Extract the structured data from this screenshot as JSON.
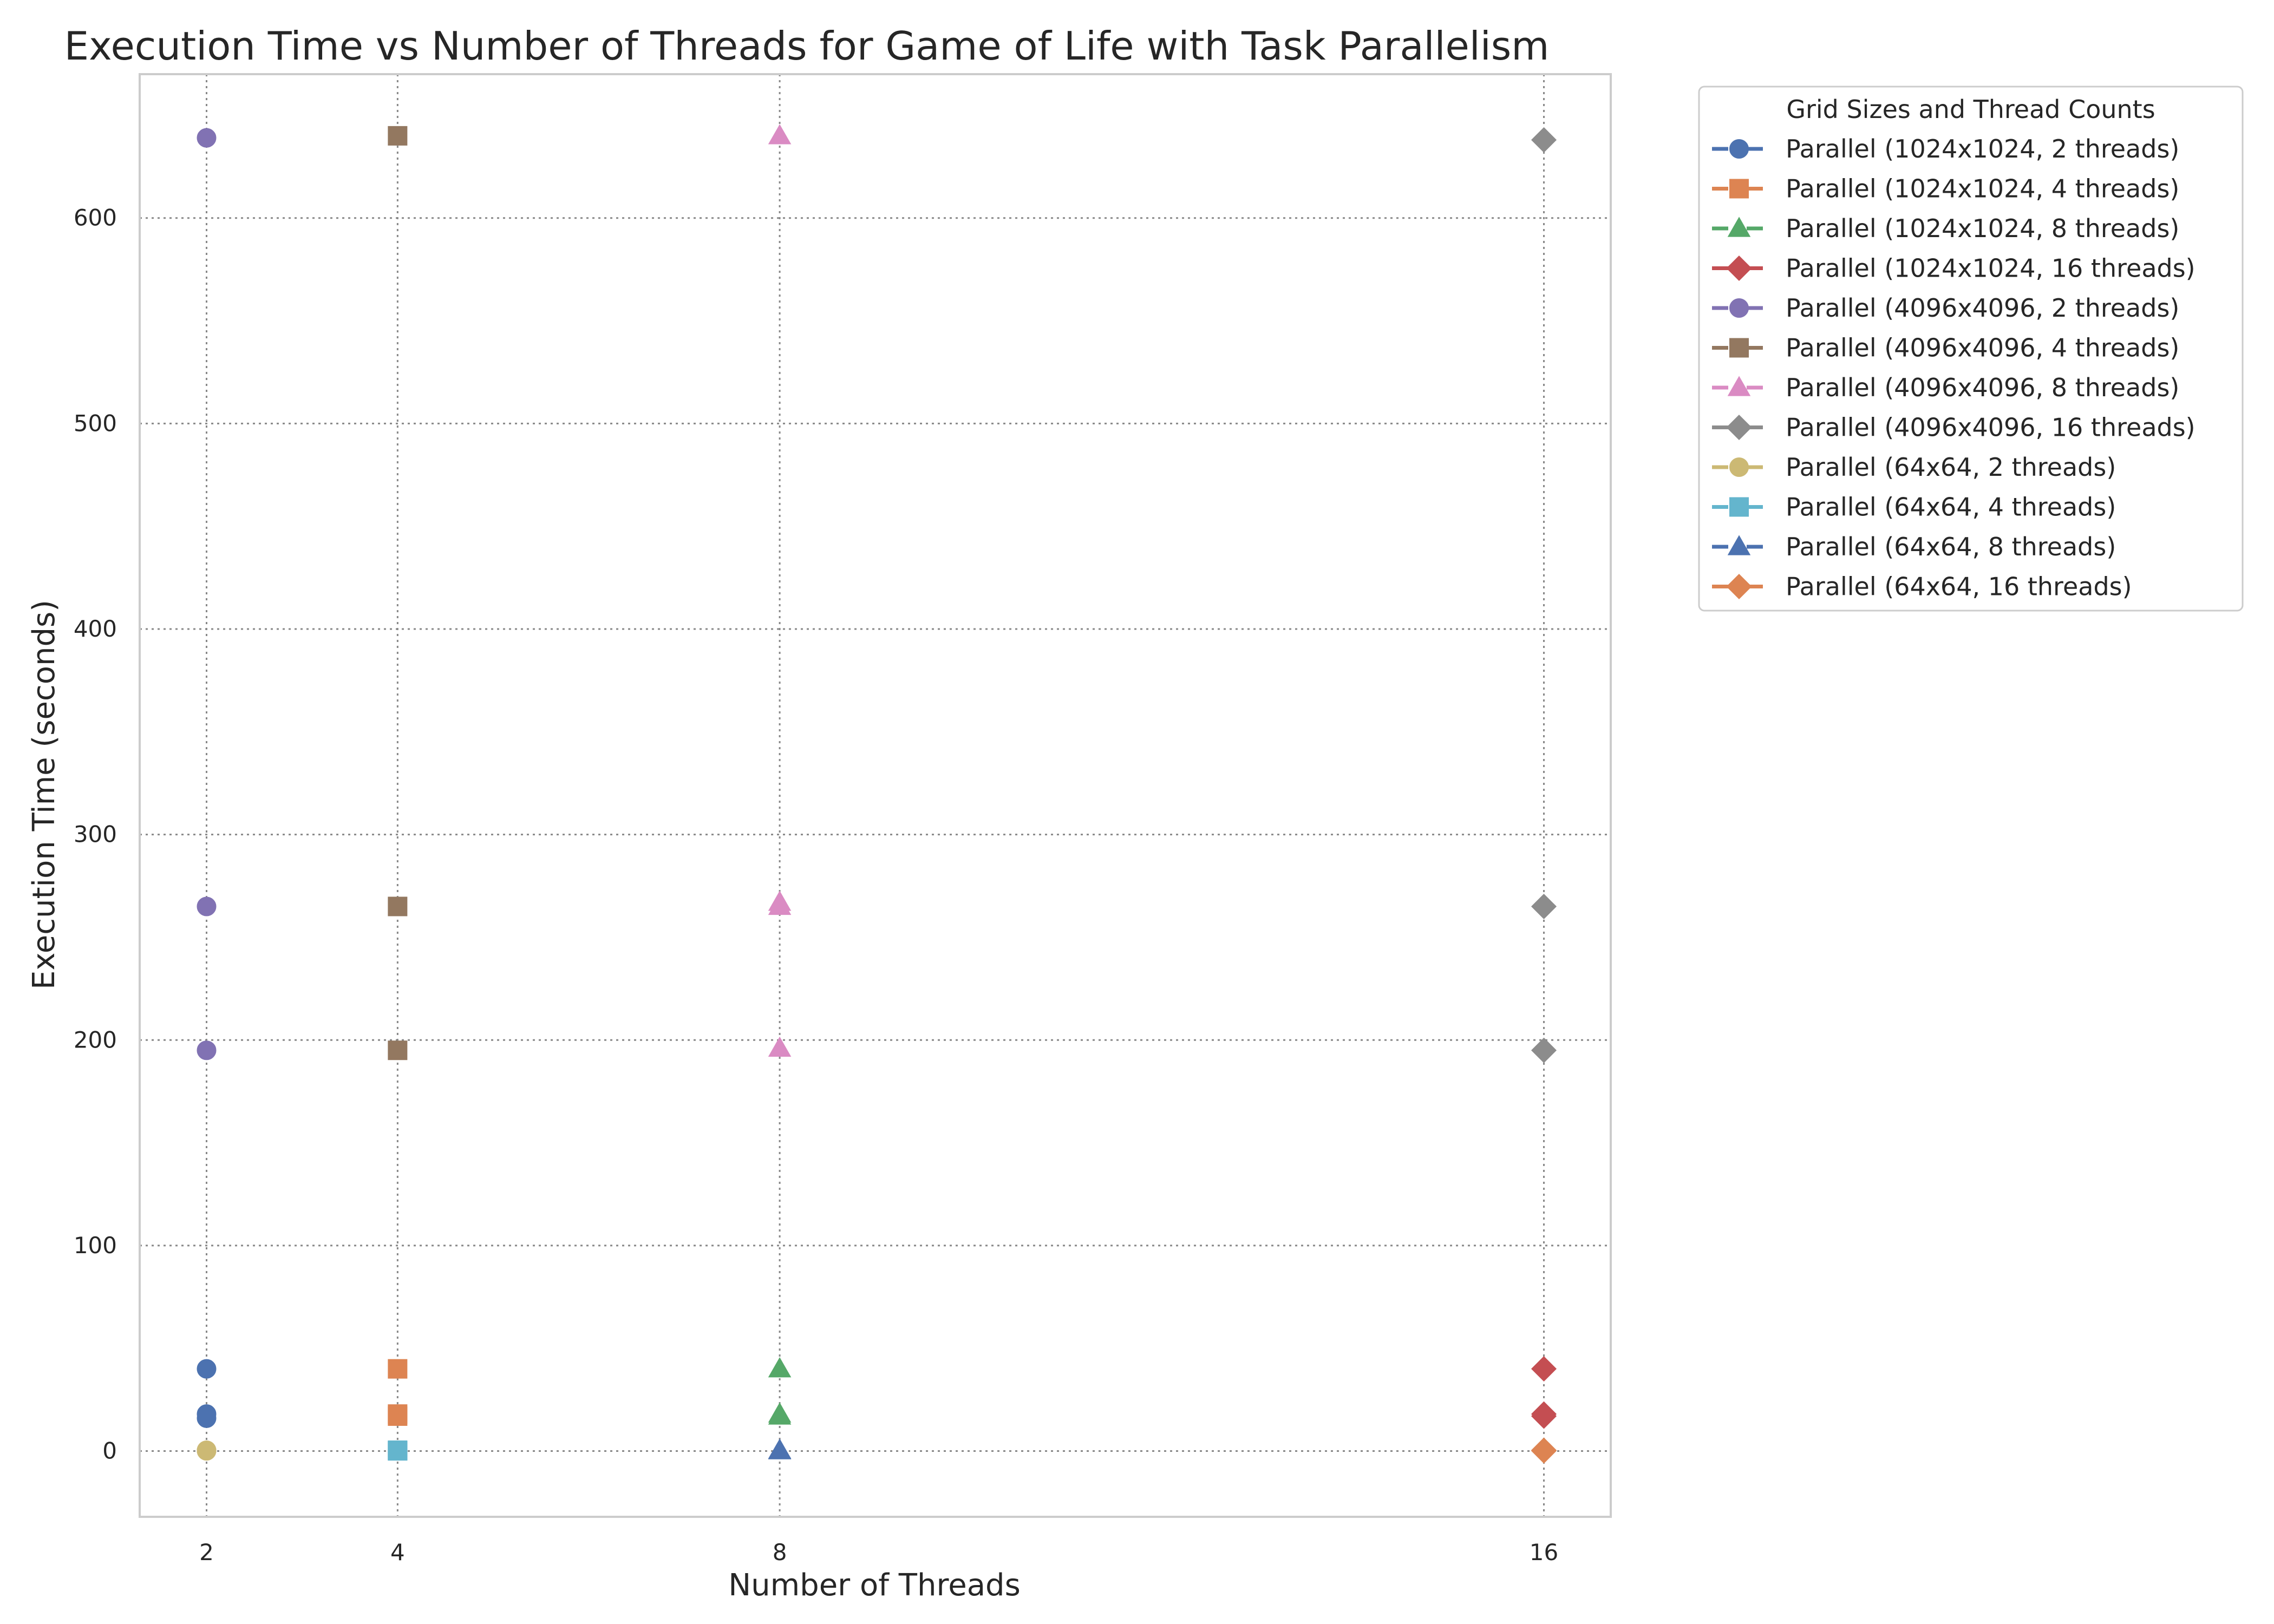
{
  "chart_data": {
    "type": "scatter",
    "title": "Execution Time vs Number of Threads for Game of Life with Task Parallelism",
    "xlabel": "Number of Threads",
    "ylabel": "Execution Time (seconds)",
    "xticks": [
      2,
      4,
      8,
      16
    ],
    "yticks": [
      0,
      100,
      200,
      300,
      400,
      500,
      600
    ],
    "xlim": [
      1.3,
      16.7
    ],
    "ylim": [
      -32,
      670
    ],
    "grid": true,
    "legend_title": "Grid Sizes and Thread Counts",
    "legend_position": "outside-top-right",
    "series": [
      {
        "name": "Parallel (1024x1024, 2 threads)",
        "color": "#4c72b0",
        "marker": "circle",
        "x": [
          2,
          2,
          2
        ],
        "y": [
          40,
          18,
          16
        ]
      },
      {
        "name": "Parallel (1024x1024, 4 threads)",
        "color": "#dd8452",
        "marker": "square",
        "x": [
          4,
          4,
          4
        ],
        "y": [
          40,
          18,
          17
        ]
      },
      {
        "name": "Parallel (1024x1024, 8 threads)",
        "color": "#55a868",
        "marker": "triangle",
        "x": [
          8,
          8,
          8
        ],
        "y": [
          40,
          18,
          17
        ]
      },
      {
        "name": "Parallel (1024x1024, 16 threads)",
        "color": "#c44e52",
        "marker": "diamond",
        "x": [
          16,
          16,
          16
        ],
        "y": [
          40,
          18,
          17
        ]
      },
      {
        "name": "Parallel (4096x4096, 2 threads)",
        "color": "#8172b3",
        "marker": "circle",
        "x": [
          2,
          2,
          2
        ],
        "y": [
          639,
          265,
          195
        ]
      },
      {
        "name": "Parallel (4096x4096, 4 threads)",
        "color": "#937860",
        "marker": "square",
        "x": [
          4,
          4,
          4
        ],
        "y": [
          640,
          265,
          195
        ]
      },
      {
        "name": "Parallel (4096x4096, 8 threads)",
        "color": "#da8bc3",
        "marker": "triangle",
        "x": [
          8,
          8,
          8,
          8
        ],
        "y": [
          640,
          267,
          265,
          196
        ]
      },
      {
        "name": "Parallel (4096x4096, 16 threads)",
        "color": "#8c8c8c",
        "marker": "diamond",
        "x": [
          16,
          16,
          16
        ],
        "y": [
          638,
          265,
          195
        ]
      },
      {
        "name": "Parallel (64x64, 2 threads)",
        "color": "#ccb974",
        "marker": "circle",
        "x": [
          2,
          2,
          2
        ],
        "y": [
          0.4,
          0.2,
          0.1
        ]
      },
      {
        "name": "Parallel (64x64, 4 threads)",
        "color": "#64b5cd",
        "marker": "square",
        "x": [
          4,
          4,
          4
        ],
        "y": [
          0.4,
          0.2,
          0.1
        ]
      },
      {
        "name": "Parallel (64x64, 8 threads)",
        "color": "#4c72b0",
        "marker": "triangle",
        "x": [
          8,
          8,
          8
        ],
        "y": [
          0.4,
          0.2,
          0.1
        ]
      },
      {
        "name": "Parallel (64x64, 16 threads)",
        "color": "#dd8452",
        "marker": "diamond",
        "x": [
          16,
          16,
          16
        ],
        "y": [
          0.4,
          0.2,
          0.1
        ]
      }
    ]
  }
}
